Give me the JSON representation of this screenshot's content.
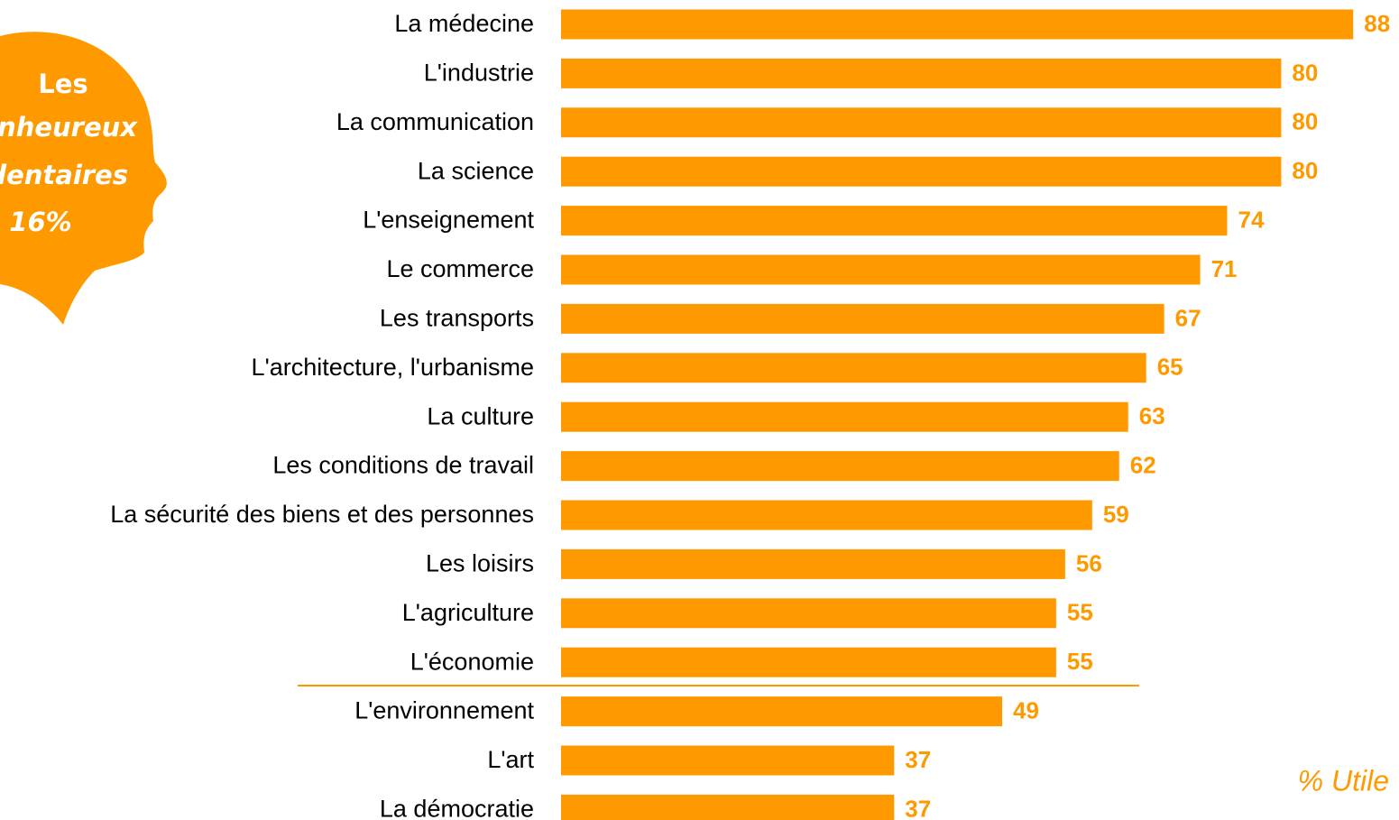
{
  "chart_data": {
    "type": "barh",
    "categories": [
      "La médecine",
      "L'industrie",
      "La communication",
      "La science",
      "L'enseignement",
      "Le commerce",
      "Les transports",
      "L'architecture, l'urbanisme",
      "La culture",
      "Les conditions de travail",
      "La sécurité des biens et des personnes",
      "Les loisirs",
      "L'agriculture",
      "L'économie",
      "L'environnement",
      "L'art",
      "La démocratie"
    ],
    "values": [
      88,
      80,
      80,
      80,
      74,
      71,
      67,
      65,
      63,
      62,
      59,
      56,
      55,
      55,
      49,
      37,
      37
    ],
    "color": "#ff9900",
    "annotations": [
      "Les",
      "nheureux",
      "dentaires",
      "16%"
    ],
    "note": "% Utile"
  }
}
